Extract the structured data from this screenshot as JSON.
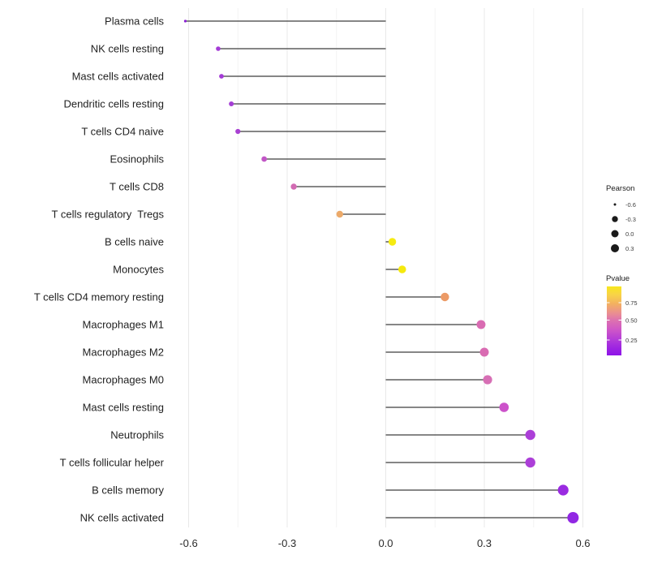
{
  "chart_data": {
    "type": "lollipop",
    "title": "",
    "xlabel": "",
    "ylabel": "",
    "orientation": "horizontal",
    "grid": true,
    "legend_position": "right",
    "x_axis": {
      "tick_values": [
        -0.6,
        -0.3,
        0.0,
        0.3,
        0.6
      ],
      "tick_labels": [
        "-0.6",
        "-0.3",
        "0.0",
        "0.3",
        "0.6"
      ],
      "minor_tick_values": [
        -0.45,
        -0.15,
        0.15,
        0.45
      ],
      "range": [
        -0.66,
        0.63
      ]
    },
    "points": [
      {
        "label": "Plasma cells",
        "pearson": -0.61,
        "dot_color": "#8A1FD3",
        "dot_radius": 1.6
      },
      {
        "label": "NK cells resting",
        "pearson": -0.51,
        "dot_color": "#A43CD6",
        "dot_radius": 2.8
      },
      {
        "label": "Mast cells activated",
        "pearson": -0.5,
        "dot_color": "#A43CD6",
        "dot_radius": 2.9
      },
      {
        "label": "Dendritic cells resting",
        "pearson": -0.47,
        "dot_color": "#A43ED5",
        "dot_radius": 3.0
      },
      {
        "label": "T cells CD4 naive",
        "pearson": -0.45,
        "dot_color": "#A840D2",
        "dot_radius": 3.1
      },
      {
        "label": "Eosinophils",
        "pearson": -0.37,
        "dot_color": "#C156C6",
        "dot_radius": 3.4
      },
      {
        "label": "T cells CD8",
        "pearson": -0.28,
        "dot_color": "#D26BB3",
        "dot_radius": 3.7
      },
      {
        "label": "T cells regulatory  Tregs",
        "pearson": -0.14,
        "dot_color": "#ECAA6A",
        "dot_radius": 4.2
      },
      {
        "label": "B cells naive",
        "pearson": 0.02,
        "dot_color": "#F6EB11",
        "dot_radius": 4.7
      },
      {
        "label": "Monocytes",
        "pearson": 0.05,
        "dot_color": "#F5E90D",
        "dot_radius": 4.8
      },
      {
        "label": "T cells CD4 memory resting",
        "pearson": 0.18,
        "dot_color": "#EC9A66",
        "dot_radius": 5.2
      },
      {
        "label": "Macrophages M1",
        "pearson": 0.29,
        "dot_color": "#D96BB2",
        "dot_radius": 5.5
      },
      {
        "label": "Macrophages M2",
        "pearson": 0.3,
        "dot_color": "#D96BB2",
        "dot_radius": 5.5
      },
      {
        "label": "Macrophages M0",
        "pearson": 0.31,
        "dot_color": "#D76FB5",
        "dot_radius": 5.6
      },
      {
        "label": "Mast cells resting",
        "pearson": 0.36,
        "dot_color": "#CC52CA",
        "dot_radius": 5.8
      },
      {
        "label": "Neutrophils",
        "pearson": 0.44,
        "dot_color": "#AC3FD8",
        "dot_radius": 6.2
      },
      {
        "label": "T cells follicular helper",
        "pearson": 0.44,
        "dot_color": "#AC3FD8",
        "dot_radius": 6.2
      },
      {
        "label": "B cells memory",
        "pearson": 0.54,
        "dot_color": "#9A2BE1",
        "dot_radius": 6.6
      },
      {
        "label": "NK cells activated",
        "pearson": 0.57,
        "dot_color": "#9127E3",
        "dot_radius": 7.0
      }
    ],
    "size_legend": {
      "title": "Pearson",
      "dot_color": "#1a1a1a",
      "items": [
        {
          "label": "-0.6",
          "radius": 1.5
        },
        {
          "label": "-0.3",
          "radius": 3.7
        },
        {
          "label": "0.0",
          "radius": 4.5
        },
        {
          "label": "0.3",
          "radius": 5.0
        }
      ]
    },
    "color_legend": {
      "title": "Pvalue",
      "tick_labels": [
        "0.75",
        "0.50",
        "0.25"
      ],
      "gradient_top_to_bottom": [
        {
          "offset": 0,
          "color": "#F7E71D"
        },
        {
          "offset": 12,
          "color": "#F8D348"
        },
        {
          "offset": 25,
          "color": "#F3B160"
        },
        {
          "offset": 40,
          "color": "#E98B95"
        },
        {
          "offset": 48,
          "color": "#DE74AD"
        },
        {
          "offset": 62,
          "color": "#D058C6"
        },
        {
          "offset": 78,
          "color": "#B13AD9"
        },
        {
          "offset": 90,
          "color": "#9C23E2"
        },
        {
          "offset": 100,
          "color": "#8E13E8"
        }
      ]
    }
  },
  "colors": {
    "background": "#FFFFFF",
    "stem": "#3F3F3F",
    "grid_major": "#E8E8E8",
    "grid_minor": "#F3F3F3",
    "axis_text": "#2B2B2B",
    "legend_text": "#3D3D3D"
  }
}
